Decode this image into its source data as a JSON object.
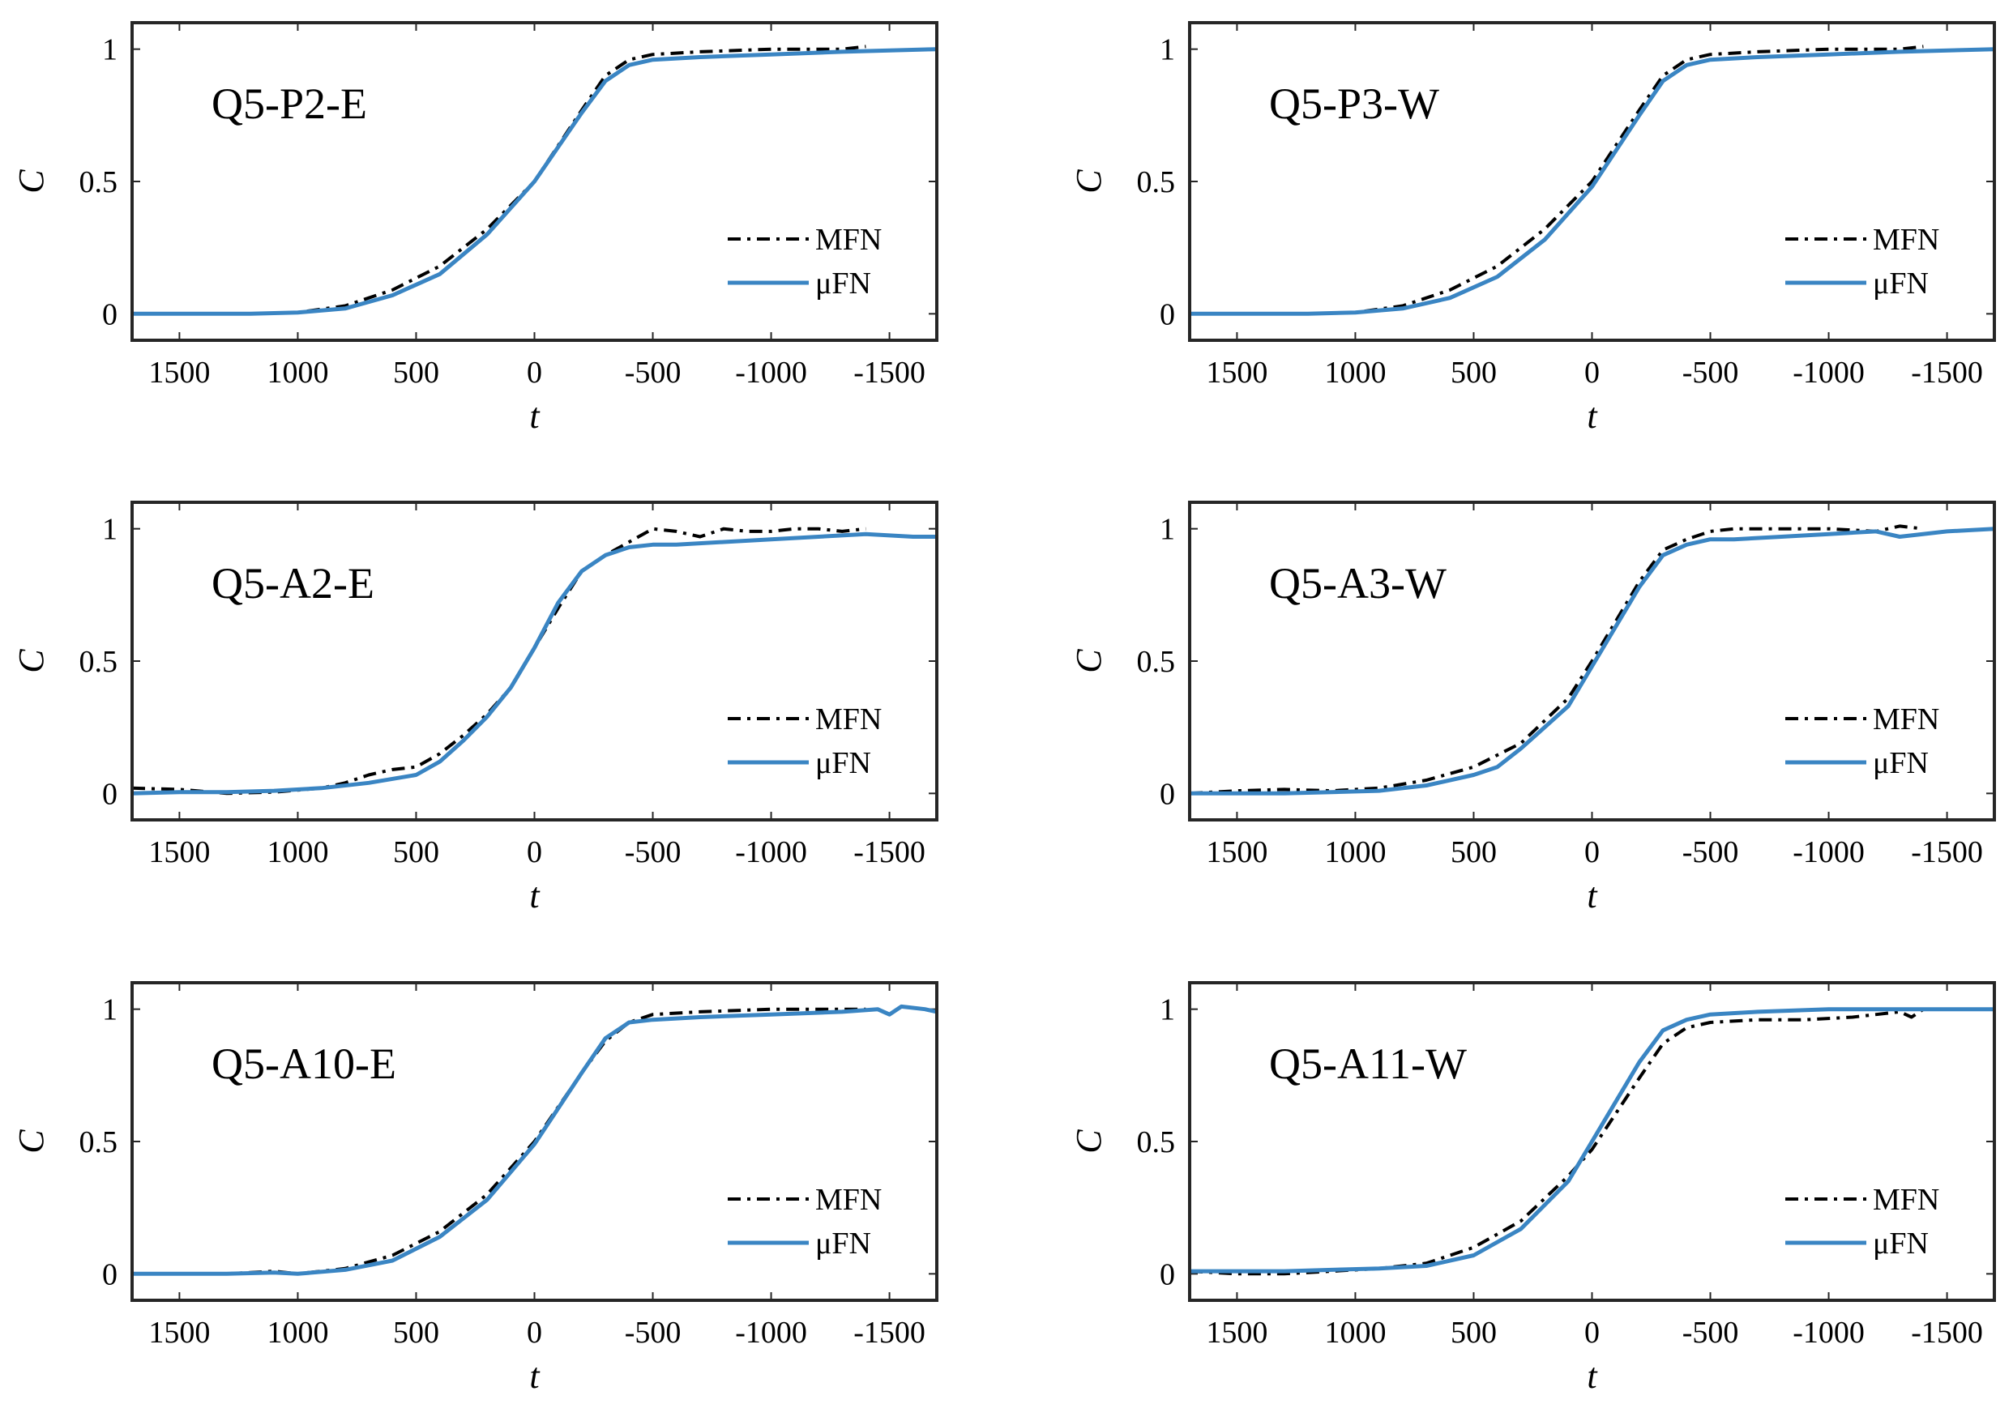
{
  "chart_data": [
    {
      "type": "line",
      "title": "Q5-P2-E",
      "xlabel": "t",
      "ylabel": "C",
      "xlim": [
        1700,
        -1700
      ],
      "ylim": [
        -0.1,
        1.1
      ],
      "xticks": [
        1500,
        1000,
        500,
        0,
        -500,
        -1000,
        -1500
      ],
      "xtick_labels": [
        "1500",
        "1000",
        "500",
        "0",
        "-500",
        "-1000",
        "-1500"
      ],
      "yticks": [
        0,
        0.5,
        1
      ],
      "ytick_labels": [
        "0",
        "0.5",
        "1"
      ],
      "legend_position": "lower-right",
      "series": [
        {
          "name": "MFN",
          "color": "#000000",
          "style": "dashdot",
          "x": [
            1700,
            1500,
            1200,
            1000,
            800,
            600,
            400,
            200,
            0,
            -200,
            -300,
            -400,
            -500,
            -700,
            -1000,
            -1300,
            -1400
          ],
          "y": [
            0.0,
            0.0,
            0.0,
            0.005,
            0.03,
            0.09,
            0.18,
            0.32,
            0.5,
            0.77,
            0.9,
            0.96,
            0.98,
            0.99,
            1.0,
            1.0,
            1.01
          ]
        },
        {
          "name": "μFN",
          "color": "#3A85C3",
          "style": "solid",
          "x": [
            1700,
            1500,
            1200,
            1000,
            800,
            600,
            400,
            200,
            0,
            -200,
            -300,
            -400,
            -500,
            -700,
            -1000,
            -1300,
            -1700
          ],
          "y": [
            0.0,
            0.0,
            0.0,
            0.005,
            0.02,
            0.07,
            0.15,
            0.3,
            0.5,
            0.76,
            0.88,
            0.94,
            0.96,
            0.97,
            0.98,
            0.99,
            1.0
          ]
        }
      ]
    },
    {
      "type": "line",
      "title": "Q5-P3-W",
      "xlabel": "t",
      "ylabel": "C",
      "xlim": [
        1700,
        -1700
      ],
      "ylim": [
        -0.1,
        1.1
      ],
      "xticks": [
        1500,
        1000,
        500,
        0,
        -500,
        -1000,
        -1500
      ],
      "xtick_labels": [
        "1500",
        "1000",
        "500",
        "0",
        "-500",
        "-1000",
        "-1500"
      ],
      "yticks": [
        0,
        0.5,
        1
      ],
      "ytick_labels": [
        "0",
        "0.5",
        "1"
      ],
      "legend_position": "lower-right",
      "series": [
        {
          "name": "MFN",
          "color": "#000000",
          "style": "dashdot",
          "x": [
            1700,
            1500,
            1200,
            1000,
            800,
            600,
            400,
            200,
            0,
            -200,
            -300,
            -400,
            -500,
            -700,
            -1000,
            -1300,
            -1400
          ],
          "y": [
            0.0,
            0.0,
            0.0,
            0.005,
            0.03,
            0.09,
            0.18,
            0.32,
            0.5,
            0.77,
            0.9,
            0.96,
            0.98,
            0.99,
            1.0,
            1.0,
            1.01
          ]
        },
        {
          "name": "μFN",
          "color": "#3A85C3",
          "style": "solid",
          "x": [
            1700,
            1500,
            1200,
            1000,
            800,
            600,
            400,
            200,
            0,
            -200,
            -300,
            -400,
            -500,
            -700,
            -1000,
            -1300,
            -1700
          ],
          "y": [
            0.0,
            0.0,
            0.0,
            0.005,
            0.02,
            0.06,
            0.14,
            0.28,
            0.48,
            0.75,
            0.88,
            0.94,
            0.96,
            0.97,
            0.98,
            0.99,
            1.0
          ]
        }
      ]
    },
    {
      "type": "line",
      "title": "Q5-A2-E",
      "xlabel": "t",
      "ylabel": "C",
      "xlim": [
        1700,
        -1700
      ],
      "ylim": [
        -0.1,
        1.1
      ],
      "xticks": [
        1500,
        1000,
        500,
        0,
        -500,
        -1000,
        -1500
      ],
      "xtick_labels": [
        "1500",
        "1000",
        "500",
        "0",
        "-500",
        "-1000",
        "-1500"
      ],
      "yticks": [
        0,
        0.5,
        1
      ],
      "ytick_labels": [
        "0",
        "0.5",
        "1"
      ],
      "legend_position": "lower-right",
      "series": [
        {
          "name": "MFN",
          "color": "#000000",
          "style": "dashdot",
          "x": [
            1700,
            1500,
            1300,
            1100,
            900,
            800,
            700,
            600,
            500,
            400,
            300,
            200,
            100,
            0,
            -100,
            -200,
            -300,
            -400,
            -500,
            -600,
            -700,
            -800,
            -900,
            -1000,
            -1100,
            -1200,
            -1300,
            -1400
          ],
          "y": [
            0.02,
            0.015,
            0.0,
            0.005,
            0.02,
            0.04,
            0.07,
            0.09,
            0.1,
            0.15,
            0.22,
            0.3,
            0.4,
            0.55,
            0.7,
            0.84,
            0.9,
            0.95,
            1.0,
            0.99,
            0.97,
            1.0,
            0.99,
            0.99,
            1.0,
            1.0,
            0.99,
            1.0
          ]
        },
        {
          "name": "μFN",
          "color": "#3A85C3",
          "style": "solid",
          "x": [
            1700,
            1500,
            1300,
            1100,
            900,
            700,
            500,
            400,
            300,
            200,
            100,
            0,
            -100,
            -200,
            -300,
            -400,
            -500,
            -600,
            -800,
            -1000,
            -1200,
            -1400,
            -1600,
            -1700
          ],
          "y": [
            0.0,
            0.005,
            0.005,
            0.01,
            0.02,
            0.04,
            0.07,
            0.12,
            0.2,
            0.29,
            0.4,
            0.55,
            0.72,
            0.84,
            0.9,
            0.93,
            0.94,
            0.94,
            0.95,
            0.96,
            0.97,
            0.98,
            0.97,
            0.97
          ]
        }
      ]
    },
    {
      "type": "line",
      "title": "Q5-A3-W",
      "xlabel": "t",
      "ylabel": "C",
      "xlim": [
        1700,
        -1700
      ],
      "ylim": [
        -0.1,
        1.1
      ],
      "xticks": [
        1500,
        1000,
        500,
        0,
        -500,
        -1000,
        -1500
      ],
      "xtick_labels": [
        "1500",
        "1000",
        "500",
        "0",
        "-500",
        "-1000",
        "-1500"
      ],
      "yticks": [
        0,
        0.5,
        1
      ],
      "ytick_labels": [
        "0",
        "0.5",
        "1"
      ],
      "legend_position": "lower-right",
      "series": [
        {
          "name": "MFN",
          "color": "#000000",
          "style": "dashdot",
          "x": [
            1700,
            1500,
            1300,
            1100,
            900,
            700,
            500,
            300,
            100,
            0,
            -200,
            -300,
            -400,
            -500,
            -600,
            -800,
            -1000,
            -1200,
            -1300,
            -1400
          ],
          "y": [
            0.0,
            0.01,
            0.015,
            0.01,
            0.02,
            0.05,
            0.1,
            0.19,
            0.36,
            0.5,
            0.8,
            0.92,
            0.96,
            0.99,
            1.0,
            1.0,
            1.0,
            0.99,
            1.01,
            1.0
          ]
        },
        {
          "name": "μFN",
          "color": "#3A85C3",
          "style": "solid",
          "x": [
            1700,
            1500,
            1300,
            1100,
            900,
            700,
            500,
            400,
            300,
            100,
            0,
            -200,
            -300,
            -400,
            -500,
            -600,
            -800,
            -1000,
            -1200,
            -1300,
            -1500,
            -1700
          ],
          "y": [
            0.0,
            0.0,
            0.0,
            0.005,
            0.01,
            0.03,
            0.07,
            0.1,
            0.17,
            0.33,
            0.48,
            0.78,
            0.9,
            0.94,
            0.96,
            0.96,
            0.97,
            0.98,
            0.99,
            0.97,
            0.99,
            1.0
          ]
        }
      ]
    },
    {
      "type": "line",
      "title": "Q5-A10-E",
      "xlabel": "t",
      "ylabel": "C",
      "xlim": [
        1700,
        -1700
      ],
      "ylim": [
        -0.1,
        1.1
      ],
      "xticks": [
        1500,
        1000,
        500,
        0,
        -500,
        -1000,
        -1500
      ],
      "xtick_labels": [
        "1500",
        "1000",
        "500",
        "0",
        "-500",
        "-1000",
        "-1500"
      ],
      "yticks": [
        0,
        0.5,
        1
      ],
      "ytick_labels": [
        "0",
        "0.5",
        "1"
      ],
      "legend_position": "lower-right",
      "series": [
        {
          "name": "MFN",
          "color": "#000000",
          "style": "dashdot",
          "x": [
            1700,
            1500,
            1300,
            1100,
            1000,
            800,
            600,
            400,
            200,
            0,
            -200,
            -300,
            -400,
            -500,
            -700,
            -1000,
            -1200,
            -1400
          ],
          "y": [
            0.0,
            0.0,
            0.0,
            0.01,
            0.0,
            0.02,
            0.07,
            0.16,
            0.3,
            0.5,
            0.76,
            0.88,
            0.95,
            0.98,
            0.99,
            1.0,
            1.0,
            1.0
          ]
        },
        {
          "name": "μFN",
          "color": "#3A85C3",
          "style": "solid",
          "x": [
            1700,
            1500,
            1300,
            1100,
            1000,
            800,
            600,
            400,
            200,
            0,
            -200,
            -300,
            -400,
            -500,
            -700,
            -1000,
            -1300,
            -1450,
            -1500,
            -1550,
            -1650,
            -1700
          ],
          "y": [
            0.0,
            0.0,
            0.0,
            0.005,
            0.0,
            0.015,
            0.05,
            0.14,
            0.28,
            0.49,
            0.76,
            0.89,
            0.95,
            0.96,
            0.97,
            0.98,
            0.99,
            1.0,
            0.98,
            1.01,
            1.0,
            0.99
          ]
        }
      ]
    },
    {
      "type": "line",
      "title": "Q5-A11-W",
      "xlabel": "t",
      "ylabel": "C",
      "xlim": [
        1700,
        -1700
      ],
      "ylim": [
        -0.1,
        1.1
      ],
      "xticks": [
        1500,
        1000,
        500,
        0,
        -500,
        -1000,
        -1500
      ],
      "xtick_labels": [
        "1500",
        "1000",
        "500",
        "0",
        "-500",
        "-1000",
        "-1500"
      ],
      "yticks": [
        0,
        0.5,
        1
      ],
      "ytick_labels": [
        "0",
        "0.5",
        "1"
      ],
      "legend_position": "lower-right",
      "series": [
        {
          "name": "MFN",
          "color": "#000000",
          "style": "dashdot",
          "x": [
            1700,
            1500,
            1300,
            1100,
            900,
            700,
            500,
            300,
            100,
            0,
            -200,
            -300,
            -400,
            -500,
            -700,
            -900,
            -1100,
            -1300,
            -1350,
            -1400
          ],
          "y": [
            0.01,
            0.0,
            0.0,
            0.01,
            0.02,
            0.04,
            0.1,
            0.2,
            0.37,
            0.47,
            0.74,
            0.87,
            0.93,
            0.95,
            0.96,
            0.96,
            0.97,
            0.99,
            0.97,
            1.0
          ]
        },
        {
          "name": "μFN",
          "color": "#3A85C3",
          "style": "solid",
          "x": [
            1700,
            1500,
            1300,
            1100,
            900,
            700,
            500,
            300,
            100,
            0,
            -200,
            -300,
            -400,
            -500,
            -700,
            -1000,
            -1300,
            -1500,
            -1700
          ],
          "y": [
            0.01,
            0.01,
            0.01,
            0.015,
            0.02,
            0.03,
            0.07,
            0.17,
            0.35,
            0.5,
            0.8,
            0.92,
            0.96,
            0.98,
            0.99,
            1.0,
            1.0,
            1.0,
            1.0
          ]
        }
      ]
    }
  ]
}
